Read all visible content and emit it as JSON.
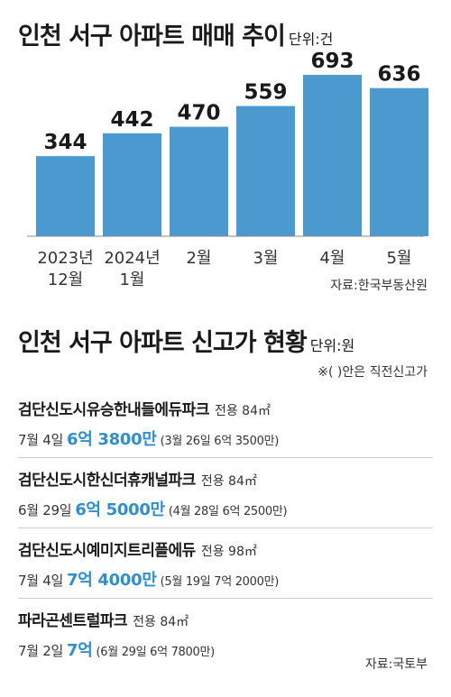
{
  "colors": {
    "bar": "#4a9acf",
    "accent": "#2e8fd0"
  },
  "chart_data": {
    "type": "bar",
    "title": "인천 서구 아파트 매매 추이",
    "unit": "단위:건",
    "categories": [
      [
        "2023년",
        "12월"
      ],
      [
        "2024년",
        "1월"
      ],
      [
        "2월"
      ],
      [
        "3월"
      ],
      [
        "4월"
      ],
      [
        "5월"
      ]
    ],
    "values": [
      344,
      442,
      470,
      559,
      693,
      636
    ],
    "ylim": [
      0,
      720
    ],
    "source": "자료:한국부동산원"
  },
  "section2": {
    "title": "인천 서구 아파트 신고가 현황",
    "unit": "단위:원",
    "note": "※( )안은 직전신고가",
    "listings": [
      {
        "name": "검단신도시유승한내들에듀파크",
        "area": "전용 84㎡",
        "date": "7월 4일",
        "price": "6억 3800만",
        "prev": "(3월 26일 6억 3500만)"
      },
      {
        "name": "검단신도시한신더휴캐널파크",
        "area": "전용 84㎡",
        "date": "6월 29일",
        "price": "6억 5000만",
        "prev": "(4월 28일 6억 2500만)"
      },
      {
        "name": "검단신도시예미지트리플에듀",
        "area": "전용 98㎡",
        "date": "7월 4일",
        "price": "7억 4000만",
        "prev": "(5월 19일 7억 2000만)"
      },
      {
        "name": "파라곤센트럴파크",
        "area": "전용 84㎡",
        "date": "7월 2일",
        "price": "7억",
        "prev": "(6월 29일 6억 7800만)"
      }
    ],
    "source": "자료:국토부"
  }
}
